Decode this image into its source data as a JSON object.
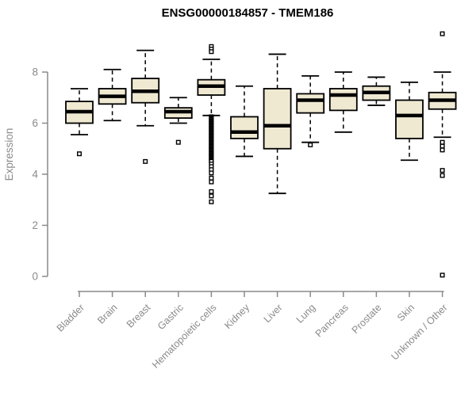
{
  "chart_data": {
    "type": "boxplot",
    "title": "ENSG00000184857 - TMEM186",
    "ylabel": "Expression",
    "xlabel": "",
    "ylim": [
      0,
      8
    ],
    "yticks": [
      0,
      2,
      4,
      6,
      8
    ],
    "grid": false,
    "legend": "none",
    "colors": {
      "box_fill": "#efe9d2",
      "box_stroke": "#000000",
      "median": "#000000",
      "axis": "#8a8a8a",
      "outlier_fill": "#ffffff",
      "outlier_stroke": "#000000"
    },
    "categories": [
      "Bladder",
      "Brain",
      "Breast",
      "Gastric",
      "Hematopoietic cells",
      "Kidney",
      "Liver",
      "Lung",
      "Pancreas",
      "Prostate",
      "Skin",
      "Unknown / Other"
    ],
    "series": [
      {
        "label": "Bladder",
        "whisker_low": 5.55,
        "q1": 6.0,
        "median": 6.45,
        "q3": 6.85,
        "whisker_high": 7.35,
        "outliers": [
          4.8
        ]
      },
      {
        "label": "Brain",
        "whisker_low": 6.1,
        "q1": 6.75,
        "median": 7.05,
        "q3": 7.35,
        "whisker_high": 8.1,
        "outliers": []
      },
      {
        "label": "Breast",
        "whisker_low": 5.9,
        "q1": 6.8,
        "median": 7.25,
        "q3": 7.75,
        "whisker_high": 8.85,
        "outliers": [
          4.5
        ]
      },
      {
        "label": "Gastric",
        "whisker_low": 6.0,
        "q1": 6.2,
        "median": 6.45,
        "q3": 6.6,
        "whisker_high": 7.0,
        "outliers": [
          5.25
        ]
      },
      {
        "label": "Hematopoietic cells",
        "whisker_low": 6.3,
        "q1": 7.1,
        "median": 7.45,
        "q3": 7.7,
        "whisker_high": 8.5,
        "outliers": [
          9.0,
          8.9,
          8.8,
          6.25,
          6.21,
          6.17,
          6.13,
          6.09,
          6.05,
          6.01,
          5.97,
          5.93,
          5.89,
          5.85,
          5.81,
          5.77,
          5.73,
          5.69,
          5.65,
          5.61,
          5.57,
          5.53,
          5.49,
          5.45,
          5.41,
          5.37,
          5.33,
          5.29,
          5.25,
          5.21,
          5.17,
          5.13,
          5.09,
          5.05,
          5.01,
          4.97,
          4.93,
          4.89,
          4.85,
          4.81,
          4.77,
          4.73,
          4.69,
          4.65,
          4.61,
          4.57,
          4.53,
          4.5,
          4.4,
          4.3,
          4.18,
          4.05,
          3.85,
          3.7,
          3.32,
          3.15,
          2.92
        ]
      },
      {
        "label": "Kidney",
        "whisker_low": 4.7,
        "q1": 5.4,
        "median": 5.65,
        "q3": 6.25,
        "whisker_high": 7.45,
        "outliers": []
      },
      {
        "label": "Liver",
        "whisker_low": 3.25,
        "q1": 5.0,
        "median": 5.9,
        "q3": 7.35,
        "whisker_high": 8.7,
        "outliers": []
      },
      {
        "label": "Lung",
        "whisker_low": 5.25,
        "q1": 6.4,
        "median": 6.9,
        "q3": 7.15,
        "whisker_high": 7.85,
        "outliers": [
          5.15
        ]
      },
      {
        "label": "Pancreas",
        "whisker_low": 5.65,
        "q1": 6.5,
        "median": 7.1,
        "q3": 7.35,
        "whisker_high": 8.0,
        "outliers": []
      },
      {
        "label": "Prostate",
        "whisker_low": 6.7,
        "q1": 6.9,
        "median": 7.2,
        "q3": 7.45,
        "whisker_high": 7.8,
        "outliers": []
      },
      {
        "label": "Skin",
        "whisker_low": 4.55,
        "q1": 5.4,
        "median": 6.3,
        "q3": 6.9,
        "whisker_high": 7.6,
        "outliers": []
      },
      {
        "label": "Unknown / Other",
        "whisker_low": 5.45,
        "q1": 6.55,
        "median": 6.9,
        "q3": 7.2,
        "whisker_high": 8.0,
        "outliers": [
          9.5,
          5.25,
          5.1,
          4.95,
          4.15,
          3.95,
          0.05
        ]
      }
    ]
  }
}
